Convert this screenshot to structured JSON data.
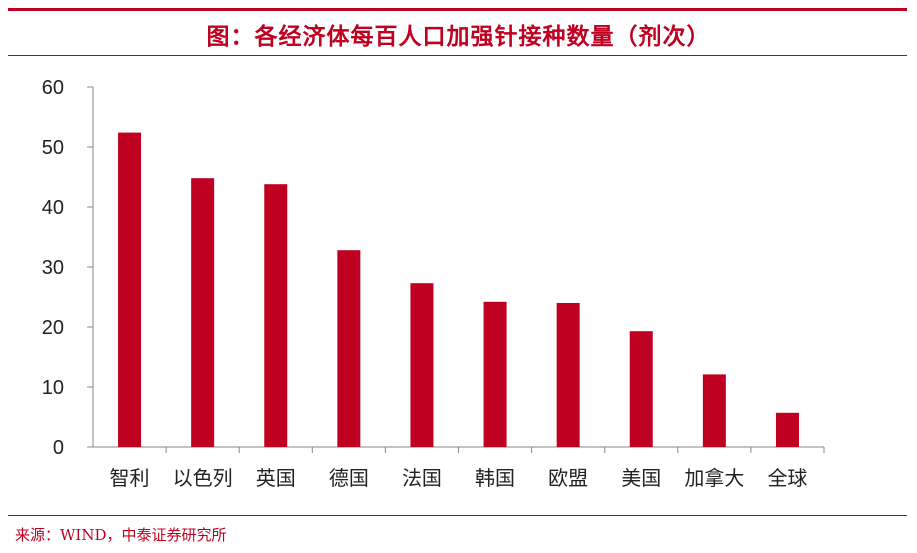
{
  "title": "图：各经济体每百人口加强针接种数量（剂次）",
  "source": "来源：WIND，中泰证券研究所",
  "colors": {
    "accent": "#c00020",
    "bar": "#c00020",
    "axis": "#888888"
  },
  "chart_data": {
    "type": "bar",
    "title": "图：各经济体每百人口加强针接种数量（剂次）",
    "xlabel": "",
    "ylabel": "",
    "ylim": [
      0,
      60
    ],
    "yticks": [
      0,
      10,
      20,
      30,
      40,
      50,
      60
    ],
    "grid": false,
    "categories": [
      "智利",
      "以色列",
      "英国",
      "德国",
      "法国",
      "韩国",
      "欧盟",
      "美国",
      "加拿大",
      "全球"
    ],
    "values": [
      52.4,
      44.8,
      43.8,
      32.8,
      27.3,
      24.2,
      24.0,
      19.3,
      12.1,
      5.7
    ]
  }
}
